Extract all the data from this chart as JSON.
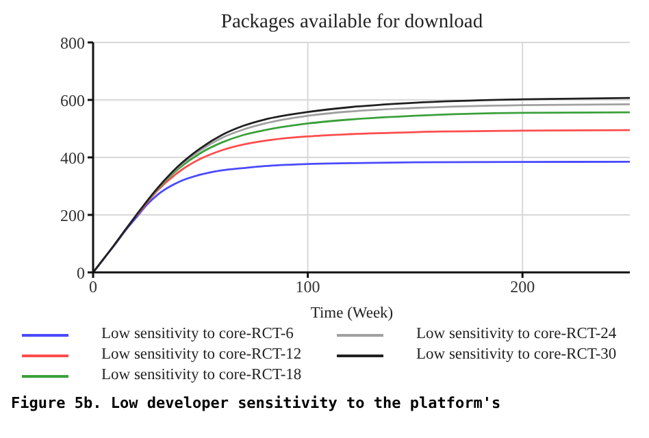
{
  "chart_data": {
    "type": "line",
    "title": "Packages available for download",
    "xlabel": "Time (Week)",
    "x": [
      0,
      5,
      10,
      15,
      20,
      25,
      30,
      40,
      50,
      60,
      70,
      80,
      100,
      120,
      150,
      200,
      250
    ],
    "xlim": [
      0,
      250
    ],
    "xticks": [
      0,
      100,
      200
    ],
    "ylim": [
      0,
      800
    ],
    "yticks": [
      0,
      200,
      400,
      600,
      800
    ],
    "grid": true,
    "legend": "bottom",
    "marker": "none",
    "line_style": "solid",
    "series": [
      {
        "name": "Low sensitivity to core-RCT-6",
        "color": "#4a4aff",
        "values": [
          0,
          48,
          95,
          145,
          190,
          235,
          270,
          315,
          340,
          355,
          363,
          370,
          377,
          380,
          383,
          384,
          385
        ]
      },
      {
        "name": "Low sensitivity to core-RCT-12",
        "color": "#ff4d4d",
        "values": [
          null,
          null,
          null,
          null,
          195,
          242,
          285,
          350,
          395,
          425,
          445,
          458,
          473,
          481,
          488,
          493,
          495
        ]
      },
      {
        "name": "Low sensitivity to core-RCT-18",
        "color": "#3aa03a",
        "values": [
          null,
          null,
          null,
          null,
          null,
          245,
          290,
          362,
          415,
          452,
          478,
          495,
          518,
          532,
          545,
          555,
          557
        ]
      },
      {
        "name": "Low sensitivity to core-RCT-24",
        "color": "#a0a0a0",
        "values": [
          0,
          48,
          97,
          148,
          198,
          246,
          292,
          368,
          425,
          468,
          497,
          518,
          545,
          560,
          572,
          582,
          585
        ]
      },
      {
        "name": "Low sensitivity to core-RCT-30",
        "color": "#202020",
        "values": [
          0,
          48,
          97,
          148,
          198,
          247,
          293,
          372,
          432,
          478,
          510,
          532,
          558,
          575,
          590,
          602,
          607
        ]
      }
    ],
    "annotations": [
      "Figure 5b. Low developer sensitivity to the platform's"
    ]
  }
}
